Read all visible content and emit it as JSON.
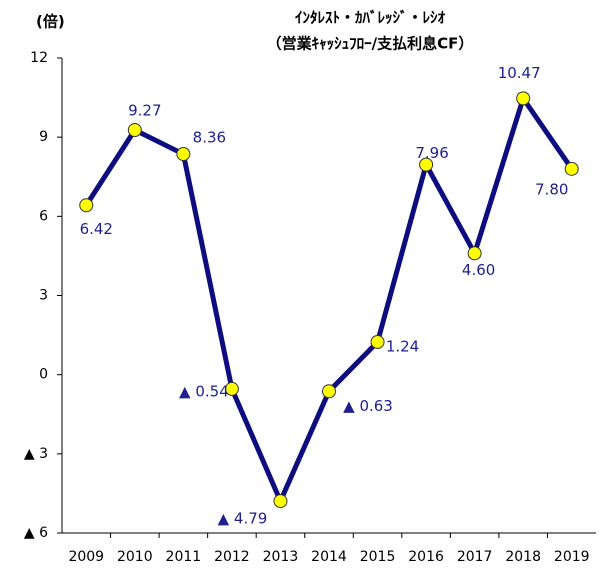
{
  "chart_data": {
    "type": "line",
    "title": "ｲﾝﾀﾚｽﾄ・ｶﾊﾞﾚｯｼﾞ・ﾚｼｵ",
    "subtitle": "（営業ｷｬｯｼｭﾌﾛｰ/支払利息CF）",
    "y_label": "(倍)",
    "categories": [
      "2009",
      "2010",
      "2011",
      "2012",
      "2013",
      "2014",
      "2015",
      "2016",
      "2017",
      "2018",
      "2019"
    ],
    "series": [
      {
        "name": "ｲﾝﾀﾚｽﾄ・ｶﾊﾞﾚｯｼﾞ・ﾚｼｵ",
        "color": "#0d0d80",
        "marker_color": "#ffff00",
        "values": [
          6.42,
          9.27,
          8.36,
          -0.54,
          -4.79,
          -0.63,
          1.24,
          7.96,
          4.6,
          10.47,
          7.8
        ],
        "value_labels": [
          "6.42",
          "9.27",
          "8.36",
          "▲ 0.54",
          "▲ 4.79",
          "▲ 0.63",
          "1.24",
          "7.96",
          "4.60",
          "10.47",
          "7.80"
        ]
      }
    ],
    "ylim": [
      -6,
      12
    ],
    "yticks": [
      {
        "value": -6,
        "label": "▲ 6"
      },
      {
        "value": -3,
        "label": "▲ 3"
      },
      0,
      3,
      6,
      9,
      12
    ],
    "grid": false
  }
}
